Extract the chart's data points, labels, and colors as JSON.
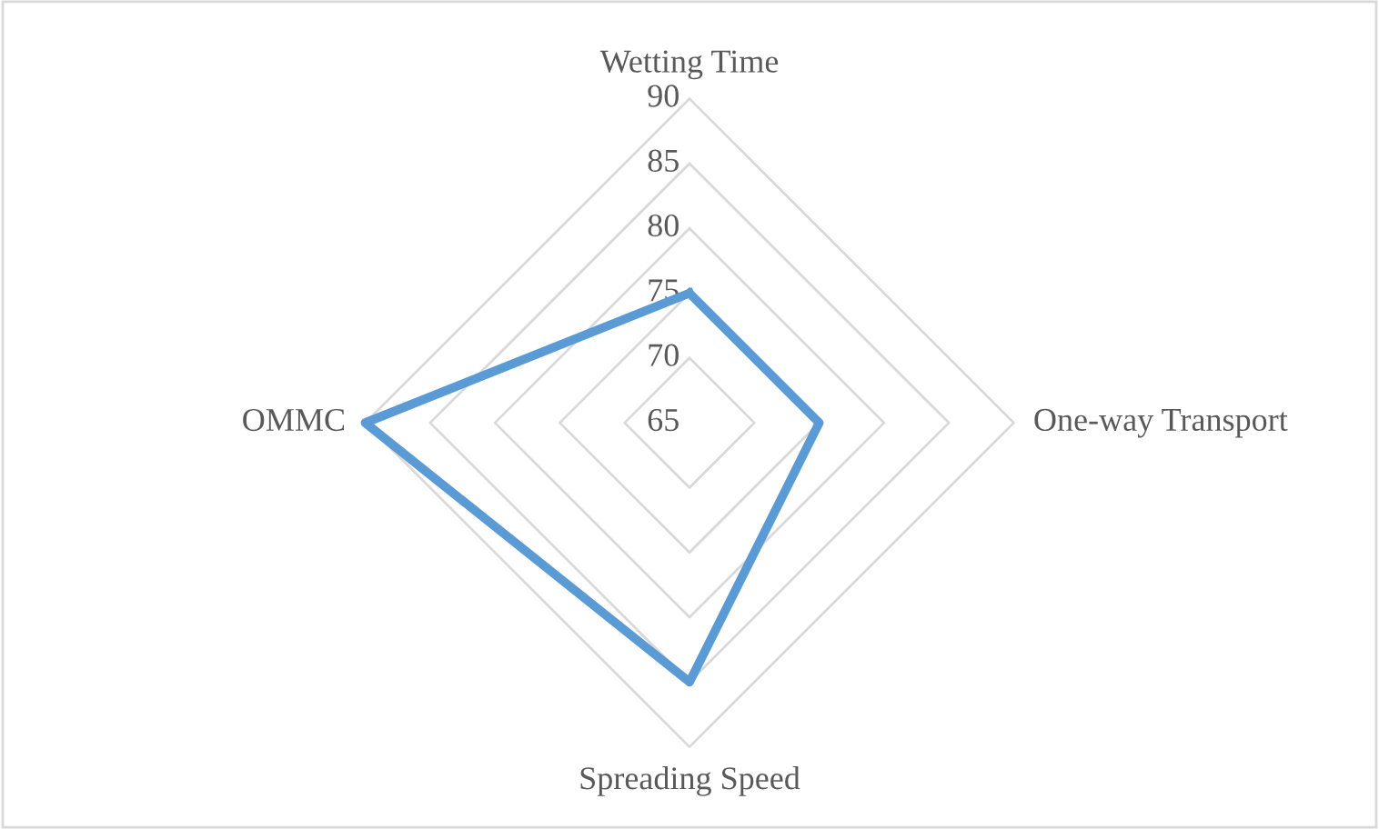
{
  "chart_data": {
    "type": "radar",
    "categories": [
      "Wetting Time",
      "One-way Transport",
      "Spreading Speed",
      "OMMC"
    ],
    "series": [
      {
        "color": "#5b9bd5",
        "values": [
          75,
          75,
          85,
          90
        ]
      }
    ],
    "ylim": [
      65,
      90
    ],
    "yticks": [
      65,
      70,
      75,
      80,
      85,
      90
    ],
    "grid": true,
    "marker": "none",
    "line_style": "solid"
  }
}
